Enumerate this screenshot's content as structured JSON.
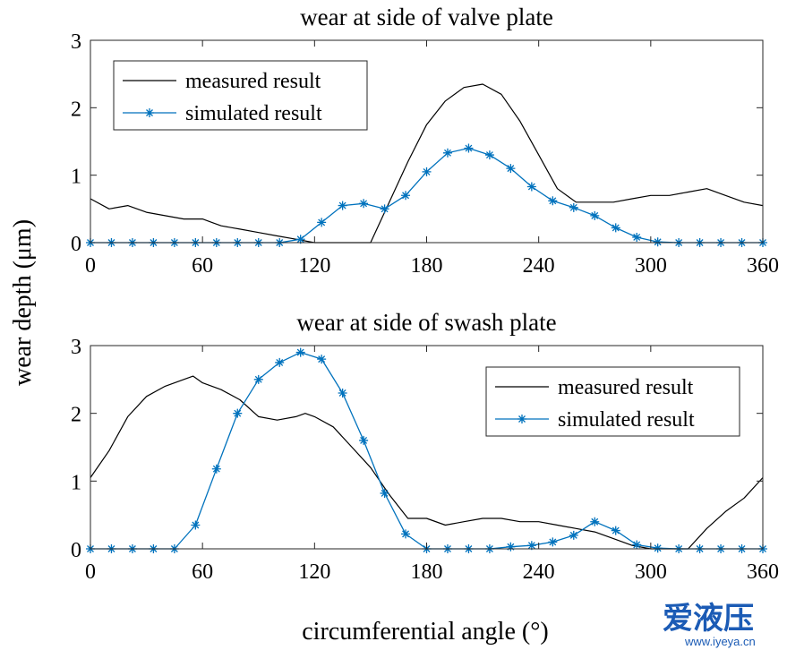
{
  "chart_data": [
    {
      "type": "line",
      "title": "wear at side of valve plate",
      "xlabel": "",
      "ylabel": "wear depth (μm)",
      "xlim": [
        0,
        360
      ],
      "ylim": [
        0,
        3
      ],
      "xticks": [
        0,
        60,
        120,
        180,
        240,
        300,
        360
      ],
      "yticks": [
        0,
        1,
        2,
        3
      ],
      "tick_labels_x": [
        "0",
        "60",
        "120",
        "180",
        "240",
        "300",
        "360"
      ],
      "tick_labels_y": [
        "0",
        "1",
        "2",
        "3"
      ],
      "legend_position": "top-left",
      "series": [
        {
          "name": "measured result",
          "color": "#000000",
          "marker": "none",
          "x": [
            0,
            10,
            20,
            30,
            40,
            50,
            60,
            65,
            70,
            80,
            90,
            100,
            110,
            120,
            130,
            140,
            150,
            160,
            170,
            180,
            190,
            200,
            210,
            220,
            230,
            240,
            250,
            260,
            270,
            280,
            290,
            300,
            310,
            320,
            330,
            340,
            350,
            360
          ],
          "values": [
            0.65,
            0.5,
            0.55,
            0.45,
            0.4,
            0.35,
            0.35,
            0.3,
            0.25,
            0.2,
            0.15,
            0.1,
            0.05,
            0.0,
            0.0,
            0.0,
            0.0,
            0.6,
            1.2,
            1.75,
            2.1,
            2.3,
            2.35,
            2.2,
            1.8,
            1.3,
            0.8,
            0.6,
            0.6,
            0.6,
            0.65,
            0.7,
            0.7,
            0.75,
            0.8,
            0.7,
            0.6,
            0.55
          ]
        },
        {
          "name": "simulated result",
          "color": "#0072BD",
          "marker": "asterisk",
          "x": [
            0,
            11.25,
            22.5,
            33.75,
            45,
            56.25,
            67.5,
            78.75,
            90,
            101.25,
            112.5,
            123.75,
            135,
            146.25,
            157.5,
            168.75,
            180,
            191.25,
            202.5,
            213.75,
            225,
            236.25,
            247.5,
            258.75,
            270,
            281.25,
            292.5,
            303.75,
            315,
            326.25,
            337.5,
            348.75,
            360
          ],
          "values": [
            0,
            0,
            0,
            0,
            0,
            0,
            0,
            0,
            0,
            0,
            0.05,
            0.3,
            0.55,
            0.58,
            0.5,
            0.7,
            1.05,
            1.33,
            1.4,
            1.3,
            1.1,
            0.83,
            0.62,
            0.52,
            0.4,
            0.22,
            0.08,
            0.01,
            0,
            0,
            0,
            0,
            0
          ]
        }
      ]
    },
    {
      "type": "line",
      "title": "wear at side of swash plate",
      "xlabel": "circumferential angle (°)",
      "ylabel": "wear depth (μm)",
      "xlim": [
        0,
        360
      ],
      "ylim": [
        0,
        3
      ],
      "xticks": [
        0,
        60,
        120,
        180,
        240,
        300,
        360
      ],
      "yticks": [
        0,
        1,
        2,
        3
      ],
      "tick_labels_x": [
        "0",
        "60",
        "120",
        "180",
        "240",
        "300",
        "360"
      ],
      "tick_labels_y": [
        "0",
        "1",
        "2",
        "3"
      ],
      "legend_position": "top-right",
      "series": [
        {
          "name": "measured result",
          "color": "#000000",
          "marker": "none",
          "x": [
            0,
            10,
            20,
            30,
            40,
            50,
            55,
            60,
            70,
            80,
            90,
            100,
            110,
            115,
            120,
            130,
            140,
            150,
            160,
            170,
            180,
            190,
            200,
            210,
            220,
            230,
            240,
            250,
            260,
            270,
            280,
            290,
            300,
            310,
            320,
            330,
            340,
            350,
            360
          ],
          "values": [
            1.05,
            1.45,
            1.95,
            2.25,
            2.4,
            2.5,
            2.55,
            2.45,
            2.35,
            2.2,
            1.95,
            1.9,
            1.95,
            2.0,
            1.95,
            1.8,
            1.5,
            1.2,
            0.8,
            0.45,
            0.45,
            0.35,
            0.4,
            0.45,
            0.45,
            0.4,
            0.4,
            0.35,
            0.3,
            0.25,
            0.15,
            0.05,
            0.0,
            0.0,
            0.0,
            0.3,
            0.55,
            0.75,
            1.05
          ]
        },
        {
          "name": "simulated result",
          "color": "#0072BD",
          "marker": "asterisk",
          "x": [
            0,
            11.25,
            22.5,
            33.75,
            45,
            56.25,
            67.5,
            78.75,
            90,
            101.25,
            112.5,
            123.75,
            135,
            146.25,
            157.5,
            168.75,
            180,
            191.25,
            202.5,
            213.75,
            225,
            236.25,
            247.5,
            258.75,
            270,
            281.25,
            292.5,
            303.75,
            315,
            326.25,
            337.5,
            348.75,
            360
          ],
          "values": [
            0,
            0,
            0,
            0,
            0,
            0.35,
            1.18,
            2.0,
            2.5,
            2.75,
            2.9,
            2.8,
            2.3,
            1.6,
            0.82,
            0.22,
            0,
            0,
            0,
            0,
            0.03,
            0.05,
            0.1,
            0.2,
            0.4,
            0.27,
            0.06,
            0.01,
            0,
            0,
            0,
            0,
            0
          ]
        }
      ]
    }
  ],
  "watermark": {
    "brand": "爱液压",
    "url": "www.iyeya.cn"
  }
}
